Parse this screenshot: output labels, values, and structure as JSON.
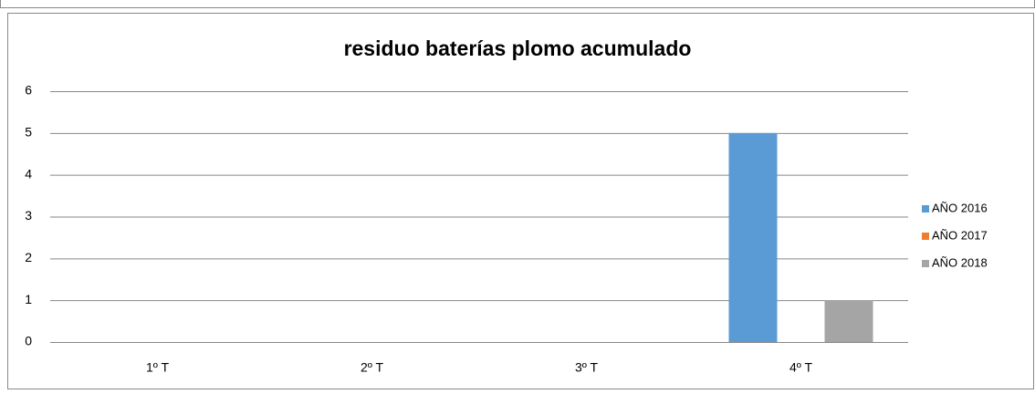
{
  "chart_data": {
    "type": "bar",
    "title": "residuo baterías plomo acumulado",
    "categories": [
      "1º T",
      "2º T",
      "3º T",
      "4º T"
    ],
    "series": [
      {
        "name": "AÑO 2016",
        "color": "#5b9bd5",
        "values": [
          0,
          0,
          0,
          5
        ]
      },
      {
        "name": "AÑO 2017",
        "color": "#ed7d31",
        "values": [
          0,
          0,
          0,
          0
        ]
      },
      {
        "name": "AÑO 2018",
        "color": "#a5a5a5",
        "values": [
          0,
          0,
          0,
          1
        ]
      }
    ],
    "ylim": [
      0,
      6
    ],
    "yticks": [
      0,
      1,
      2,
      3,
      4,
      5,
      6
    ],
    "grid": true,
    "legend": "right"
  }
}
